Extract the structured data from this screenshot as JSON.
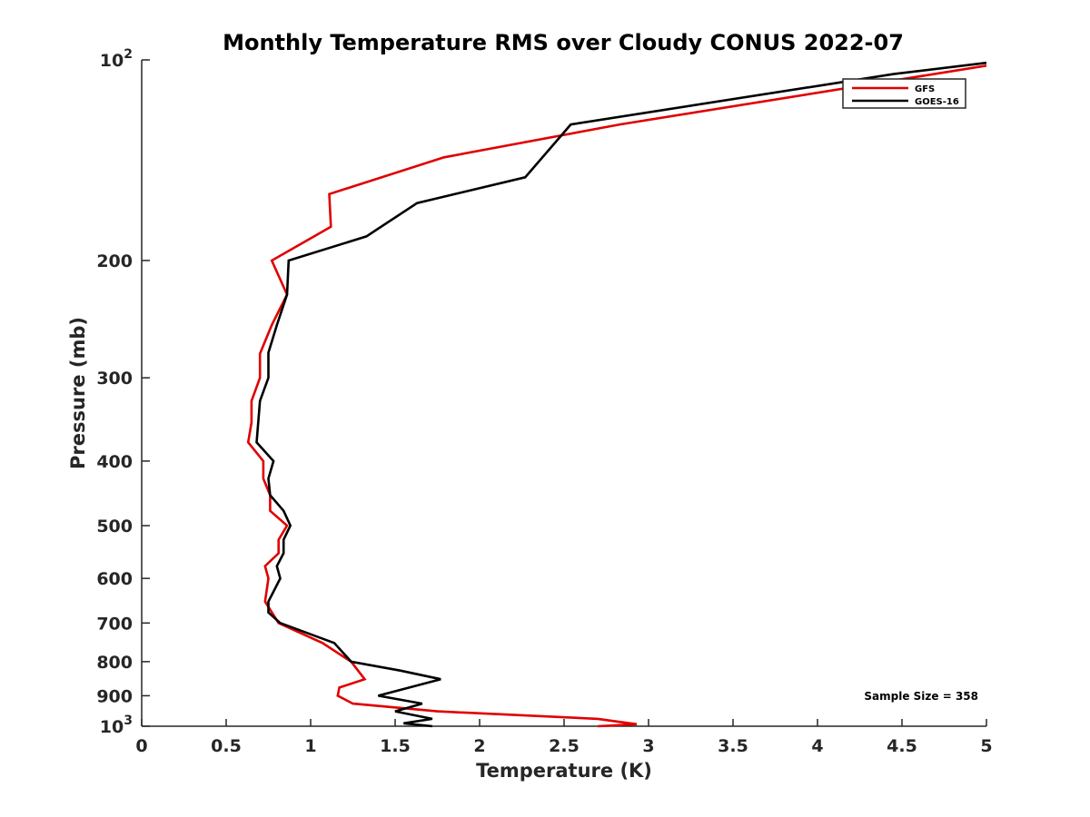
{
  "chart_data": {
    "type": "line",
    "title": "Monthly Temperature RMS over Cloudy CONUS  2022-07",
    "xlabel": "Temperature (K)",
    "ylabel": "Pressure (mb)",
    "xlim": [
      0,
      5
    ],
    "ylim": [
      100,
      1000
    ],
    "y_scale": "log",
    "y_reversed": true,
    "grid": false,
    "legend_position": "top-right",
    "x_ticks": [
      0,
      0.5,
      1,
      1.5,
      2,
      2.5,
      3,
      3.5,
      4,
      4.5,
      5
    ],
    "x_tick_labels": [
      "0",
      "0.5",
      "1",
      "1.5",
      "2",
      "2.5",
      "3",
      "3.5",
      "4",
      "4.5",
      "5"
    ],
    "y_ticks": [
      100,
      200,
      300,
      400,
      500,
      600,
      700,
      800,
      900,
      1000
    ],
    "y_tick_labels": [
      {
        "base": "10",
        "exp": "2"
      },
      {
        "base": "200"
      },
      {
        "base": "300"
      },
      {
        "base": "400"
      },
      {
        "base": "500"
      },
      {
        "base": "600"
      },
      {
        "base": "700"
      },
      {
        "base": "800"
      },
      {
        "base": "900"
      },
      {
        "base": "10",
        "exp": "3"
      }
    ],
    "annotation": "Sample Size = 358",
    "series": [
      {
        "name": "GFS",
        "color": "#e00000",
        "points": [
          [
            5.0,
            102
          ],
          [
            2.83,
            125
          ],
          [
            1.79,
            140
          ],
          [
            1.11,
            159
          ],
          [
            1.12,
            178
          ],
          [
            0.77,
            200
          ],
          [
            0.86,
            225
          ],
          [
            0.77,
            250
          ],
          [
            0.7,
            276
          ],
          [
            0.7,
            300
          ],
          [
            0.65,
            325
          ],
          [
            0.65,
            350
          ],
          [
            0.63,
            375
          ],
          [
            0.72,
            400
          ],
          [
            0.72,
            425
          ],
          [
            0.76,
            450
          ],
          [
            0.76,
            475
          ],
          [
            0.86,
            500
          ],
          [
            0.81,
            525
          ],
          [
            0.81,
            550
          ],
          [
            0.73,
            575
          ],
          [
            0.75,
            600
          ],
          [
            0.73,
            650
          ],
          [
            0.81,
            700
          ],
          [
            1.07,
            750
          ],
          [
            1.24,
            800
          ],
          [
            1.32,
            850
          ],
          [
            1.17,
            875
          ],
          [
            1.16,
            900
          ],
          [
            1.25,
            925
          ],
          [
            1.75,
            950
          ],
          [
            2.7,
            975
          ],
          [
            2.93,
            993
          ],
          [
            2.7,
            1000
          ]
        ]
      },
      {
        "name": "GOES-16",
        "color": "#000000",
        "points": [
          [
            5.0,
            101
          ],
          [
            4.45,
            105
          ],
          [
            2.54,
            125
          ],
          [
            2.27,
            150
          ],
          [
            1.63,
            164
          ],
          [
            1.33,
            184
          ],
          [
            0.87,
            200
          ],
          [
            0.86,
            225
          ],
          [
            0.8,
            250
          ],
          [
            0.75,
            275
          ],
          [
            0.75,
            300
          ],
          [
            0.7,
            325
          ],
          [
            0.69,
            350
          ],
          [
            0.68,
            375
          ],
          [
            0.78,
            400
          ],
          [
            0.75,
            425
          ],
          [
            0.76,
            450
          ],
          [
            0.84,
            475
          ],
          [
            0.88,
            500
          ],
          [
            0.84,
            525
          ],
          [
            0.84,
            550
          ],
          [
            0.8,
            575
          ],
          [
            0.82,
            600
          ],
          [
            0.75,
            650
          ],
          [
            0.75,
            675
          ],
          [
            0.82,
            700
          ],
          [
            1.14,
            750
          ],
          [
            1.24,
            800
          ],
          [
            1.53,
            825
          ],
          [
            1.77,
            850
          ],
          [
            1.4,
            900
          ],
          [
            1.66,
            925
          ],
          [
            1.5,
            950
          ],
          [
            1.72,
            975
          ],
          [
            1.55,
            990
          ],
          [
            1.72,
            1000
          ]
        ]
      }
    ]
  }
}
